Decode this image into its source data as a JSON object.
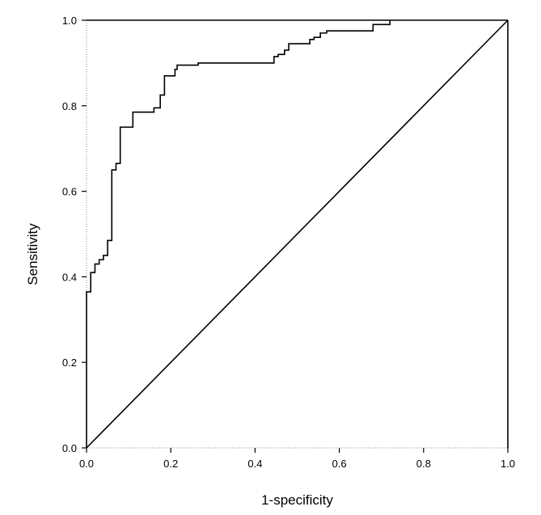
{
  "chart_data": {
    "type": "line",
    "title": "",
    "xlabel": "1-specificity",
    "ylabel": "Sensitivity",
    "xlim": [
      0,
      1
    ],
    "ylim": [
      0,
      1
    ],
    "xticks": [
      "0.0",
      "0.2",
      "0.4",
      "0.6",
      "0.8",
      "1.0"
    ],
    "yticks": [
      "0.0",
      "0.2",
      "0.4",
      "0.6",
      "0.8",
      "1.0"
    ],
    "grid": false,
    "legend": "none",
    "colors": {
      "line": "#000000",
      "frame": "#000000",
      "background": "#ffffff"
    },
    "series": [
      {
        "style": "step",
        "x": [
          0.0,
          0.0,
          0.01,
          0.01,
          0.02,
          0.02,
          0.03,
          0.03,
          0.04,
          0.04,
          0.05,
          0.05,
          0.06,
          0.06,
          0.07,
          0.07,
          0.08,
          0.08,
          0.085,
          0.085,
          0.11,
          0.11,
          0.16,
          0.16,
          0.175,
          0.175,
          0.185,
          0.185,
          0.21,
          0.21,
          0.215,
          0.215,
          0.225,
          0.225,
          0.265,
          0.265,
          0.275,
          0.275,
          0.445,
          0.445,
          0.455,
          0.455,
          0.47,
          0.47,
          0.48,
          0.48,
          0.53,
          0.53,
          0.54,
          0.54,
          0.555,
          0.555,
          0.57,
          0.57,
          0.68,
          0.68,
          0.72,
          0.72
        ],
        "y": [
          0.0,
          0.365,
          0.365,
          0.41,
          0.41,
          0.43,
          0.43,
          0.44,
          0.44,
          0.45,
          0.45,
          0.485,
          0.485,
          0.65,
          0.65,
          0.665,
          0.665,
          0.75,
          0.75,
          0.75,
          0.75,
          0.785,
          0.785,
          0.795,
          0.795,
          0.825,
          0.825,
          0.87,
          0.87,
          0.885,
          0.885,
          0.895,
          0.895,
          0.895,
          0.895,
          0.9,
          0.9,
          0.9,
          0.9,
          0.915,
          0.915,
          0.92,
          0.92,
          0.93,
          0.93,
          0.945,
          0.945,
          0.955,
          0.955,
          0.96,
          0.96,
          0.97,
          0.97,
          0.975,
          0.975,
          0.99,
          0.99,
          1.0
        ]
      },
      {
        "style": "reference-diagonal",
        "x": [
          0,
          1
        ],
        "y": [
          0,
          1
        ]
      }
    ]
  }
}
